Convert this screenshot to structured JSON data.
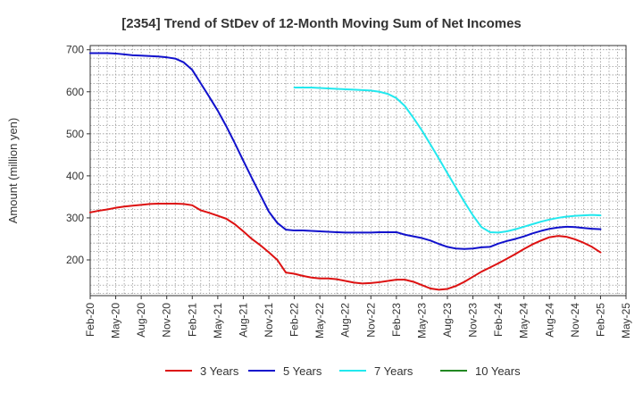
{
  "chart_data": {
    "type": "line",
    "title": "[2354]  Trend of StDev of 12-Month Moving Sum of Net Incomes",
    "ylabel": "Amount (million yen)",
    "xlabel": "",
    "ylim": [
      115,
      710
    ],
    "yticks": [
      200,
      300,
      400,
      500,
      600,
      700
    ],
    "x_start": "2020-02",
    "x_end": "2025-05",
    "xtick_labels": [
      "Feb-20",
      "May-20",
      "Aug-20",
      "Nov-20",
      "Feb-21",
      "May-21",
      "Aug-21",
      "Nov-21",
      "Feb-22",
      "May-22",
      "Aug-22",
      "Nov-22",
      "Feb-23",
      "May-23",
      "Aug-23",
      "Nov-23",
      "Feb-24",
      "May-24",
      "Aug-24",
      "Nov-24",
      "Feb-25",
      "May-25"
    ],
    "grid": true,
    "grid_style": "dotted",
    "legend_position": "bottom",
    "series": [
      {
        "name": "3 Years",
        "color": "#dd1111",
        "points": [
          [
            "2020-02",
            313
          ],
          [
            "2020-03",
            317
          ],
          [
            "2020-04",
            320
          ],
          [
            "2020-05",
            324
          ],
          [
            "2020-06",
            327
          ],
          [
            "2020-07",
            329
          ],
          [
            "2020-08",
            331
          ],
          [
            "2020-09",
            333
          ],
          [
            "2020-10",
            334
          ],
          [
            "2020-11",
            334
          ],
          [
            "2020-12",
            334
          ],
          [
            "2021-01",
            333
          ],
          [
            "2021-02",
            330
          ],
          [
            "2021-03",
            318
          ],
          [
            "2021-04",
            312
          ],
          [
            "2021-05",
            305
          ],
          [
            "2021-06",
            298
          ],
          [
            "2021-07",
            285
          ],
          [
            "2021-08",
            268
          ],
          [
            "2021-09",
            250
          ],
          [
            "2021-10",
            235
          ],
          [
            "2021-11",
            218
          ],
          [
            "2021-12",
            200
          ],
          [
            "2022-01",
            170
          ],
          [
            "2022-02",
            167
          ],
          [
            "2022-03",
            162
          ],
          [
            "2022-04",
            158
          ],
          [
            "2022-05",
            156
          ],
          [
            "2022-06",
            156
          ],
          [
            "2022-07",
            154
          ],
          [
            "2022-08",
            150
          ],
          [
            "2022-09",
            146
          ],
          [
            "2022-10",
            144
          ],
          [
            "2022-11",
            145
          ],
          [
            "2022-12",
            147
          ],
          [
            "2023-01",
            150
          ],
          [
            "2023-02",
            153
          ],
          [
            "2023-03",
            153
          ],
          [
            "2023-04",
            148
          ],
          [
            "2023-05",
            140
          ],
          [
            "2023-06",
            132
          ],
          [
            "2023-07",
            129
          ],
          [
            "2023-08",
            131
          ],
          [
            "2023-09",
            138
          ],
          [
            "2023-10",
            148
          ],
          [
            "2023-11",
            160
          ],
          [
            "2023-12",
            172
          ],
          [
            "2024-01",
            182
          ],
          [
            "2024-02",
            192
          ],
          [
            "2024-03",
            203
          ],
          [
            "2024-04",
            214
          ],
          [
            "2024-05",
            226
          ],
          [
            "2024-06",
            237
          ],
          [
            "2024-07",
            246
          ],
          [
            "2024-08",
            254
          ],
          [
            "2024-09",
            257
          ],
          [
            "2024-10",
            255
          ],
          [
            "2024-11",
            249
          ],
          [
            "2024-12",
            241
          ],
          [
            "2025-01",
            231
          ],
          [
            "2025-02",
            218
          ]
        ]
      },
      {
        "name": "5 Years",
        "color": "#1111cc",
        "points": [
          [
            "2020-02",
            692
          ],
          [
            "2020-03",
            692
          ],
          [
            "2020-04",
            692
          ],
          [
            "2020-05",
            691
          ],
          [
            "2020-06",
            689
          ],
          [
            "2020-07",
            687
          ],
          [
            "2020-08",
            686
          ],
          [
            "2020-09",
            685
          ],
          [
            "2020-10",
            684
          ],
          [
            "2020-11",
            682
          ],
          [
            "2020-12",
            679
          ],
          [
            "2021-01",
            670
          ],
          [
            "2021-02",
            652
          ],
          [
            "2021-03",
            620
          ],
          [
            "2021-04",
            588
          ],
          [
            "2021-05",
            555
          ],
          [
            "2021-06",
            518
          ],
          [
            "2021-07",
            478
          ],
          [
            "2021-08",
            436
          ],
          [
            "2021-09",
            395
          ],
          [
            "2021-10",
            355
          ],
          [
            "2021-11",
            315
          ],
          [
            "2021-12",
            288
          ],
          [
            "2022-01",
            272
          ],
          [
            "2022-02",
            270
          ],
          [
            "2022-03",
            270
          ],
          [
            "2022-04",
            269
          ],
          [
            "2022-05",
            268
          ],
          [
            "2022-06",
            267
          ],
          [
            "2022-07",
            266
          ],
          [
            "2022-08",
            265
          ],
          [
            "2022-09",
            265
          ],
          [
            "2022-10",
            265
          ],
          [
            "2022-11",
            265
          ],
          [
            "2022-12",
            266
          ],
          [
            "2023-01",
            266
          ],
          [
            "2023-02",
            266
          ],
          [
            "2023-03",
            260
          ],
          [
            "2023-04",
            256
          ],
          [
            "2023-05",
            252
          ],
          [
            "2023-06",
            246
          ],
          [
            "2023-07",
            238
          ],
          [
            "2023-08",
            231
          ],
          [
            "2023-09",
            227
          ],
          [
            "2023-10",
            226
          ],
          [
            "2023-11",
            227
          ],
          [
            "2023-12",
            230
          ],
          [
            "2024-01",
            231
          ],
          [
            "2024-02",
            239
          ],
          [
            "2024-03",
            245
          ],
          [
            "2024-04",
            250
          ],
          [
            "2024-05",
            256
          ],
          [
            "2024-06",
            263
          ],
          [
            "2024-07",
            269
          ],
          [
            "2024-08",
            274
          ],
          [
            "2024-09",
            277
          ],
          [
            "2024-10",
            279
          ],
          [
            "2024-11",
            278
          ],
          [
            "2024-12",
            276
          ],
          [
            "2025-01",
            274
          ],
          [
            "2025-02",
            273
          ]
        ]
      },
      {
        "name": "7 Years",
        "color": "#22e8ee",
        "points": [
          [
            "2022-02",
            610
          ],
          [
            "2022-03",
            610
          ],
          [
            "2022-04",
            610
          ],
          [
            "2022-05",
            609
          ],
          [
            "2022-06",
            608
          ],
          [
            "2022-07",
            607
          ],
          [
            "2022-08",
            606
          ],
          [
            "2022-09",
            605
          ],
          [
            "2022-10",
            604
          ],
          [
            "2022-11",
            603
          ],
          [
            "2022-12",
            600
          ],
          [
            "2023-01",
            595
          ],
          [
            "2023-02",
            585
          ],
          [
            "2023-03",
            566
          ],
          [
            "2023-04",
            538
          ],
          [
            "2023-05",
            508
          ],
          [
            "2023-06",
            475
          ],
          [
            "2023-07",
            441
          ],
          [
            "2023-08",
            406
          ],
          [
            "2023-09",
            372
          ],
          [
            "2023-10",
            338
          ],
          [
            "2023-11",
            306
          ],
          [
            "2023-12",
            278
          ],
          [
            "2024-01",
            266
          ],
          [
            "2024-02",
            265
          ],
          [
            "2024-03",
            268
          ],
          [
            "2024-04",
            273
          ],
          [
            "2024-05",
            279
          ],
          [
            "2024-06",
            285
          ],
          [
            "2024-07",
            291
          ],
          [
            "2024-08",
            296
          ],
          [
            "2024-09",
            300
          ],
          [
            "2024-10",
            303
          ],
          [
            "2024-11",
            305
          ],
          [
            "2024-12",
            306
          ],
          [
            "2025-01",
            307
          ],
          [
            "2025-02",
            306
          ]
        ]
      },
      {
        "name": "10 Years",
        "color": "#228822",
        "points": []
      }
    ]
  }
}
